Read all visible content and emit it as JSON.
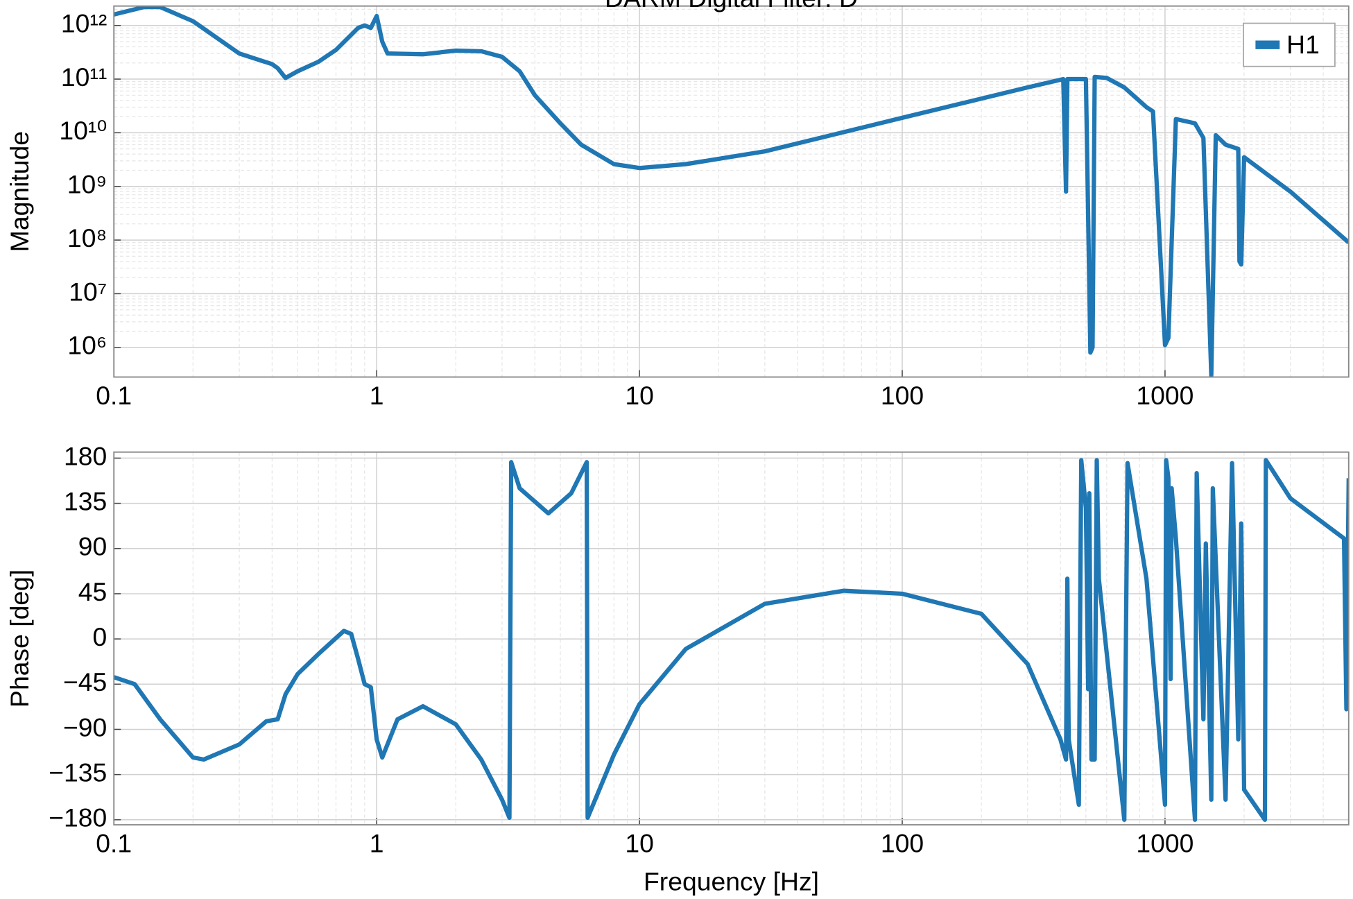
{
  "chart_data": [
    {
      "type": "line",
      "title": "DARM Digital Filter: D",
      "ylabel": "Magnitude",
      "xlog": true,
      "ylog": true,
      "grid": true,
      "legend": "upper right",
      "xlim": [
        0.1,
        5000
      ],
      "xticks": [
        0.1,
        1,
        10,
        100,
        1000
      ],
      "ylim": [
        280000,
        2300000000000
      ],
      "yticks": [
        {
          "value": 1000000,
          "label": "10⁶"
        },
        {
          "value": 10000000,
          "label": "10⁷"
        },
        {
          "value": 100000000,
          "label": "10⁸"
        },
        {
          "value": 1000000000,
          "label": "10⁹"
        },
        {
          "value": 10000000000,
          "label": "10¹⁰"
        },
        {
          "value": 100000000000,
          "label": "10¹¹"
        },
        {
          "value": 1000000000000,
          "label": "10¹²"
        }
      ],
      "x": [
        0.1,
        0.13,
        0.15,
        0.2,
        0.3,
        0.4,
        0.42,
        0.45,
        0.5,
        0.6,
        0.7,
        0.85,
        0.9,
        0.95,
        1.0,
        1.05,
        1.1,
        1.5,
        2,
        2.5,
        3,
        3.5,
        4,
        5,
        6,
        8,
        10,
        15,
        30,
        100,
        300,
        410,
        420,
        425,
        500,
        520,
        530,
        540,
        600,
        700,
        850,
        900,
        1000,
        1030,
        1100,
        1300,
        1400,
        1500,
        1560,
        1700,
        1900,
        1920,
        1950,
        2000,
        3000,
        5000
      ],
      "series": [
        {
          "name": "H1",
          "color": "#1f77b4",
          "values": [
            1600000000000,
            2200000000000,
            2200000000000,
            1200000000000,
            300000000000,
            190000000000,
            160000000000,
            105000000000,
            140000000000,
            210000000000,
            350000000000,
            900000000000,
            1000000000000,
            900000000000,
            1500000000000,
            500000000000,
            300000000000,
            290000000000,
            340000000000,
            330000000000,
            260000000000,
            140000000000,
            50000000000,
            15000000000,
            6000000000,
            2600000000,
            2200000000,
            2600000000,
            4500000000,
            19000000000,
            70000000000,
            100000000000,
            800000000,
            100000000000,
            100000000000,
            800000,
            1000000,
            110000000000,
            105000000000,
            70000000000,
            30000000000,
            25000000000,
            1100000,
            1500000,
            18000000000,
            15000000000,
            8000000000,
            300000,
            9000000000,
            6000000000,
            5000000000,
            40000000,
            35000000,
            3500000000,
            800000000,
            90000000
          ]
        }
      ]
    },
    {
      "type": "line",
      "xlabel": "Frequency [Hz]",
      "ylabel": "Phase [deg]",
      "xlog": true,
      "ylog": false,
      "grid": true,
      "xlim": [
        0.1,
        5000
      ],
      "xticks": [
        0.1,
        1,
        10,
        100,
        1000
      ],
      "ylim": [
        -185,
        186
      ],
      "yticks": [
        {
          "value": -180,
          "label": "−180"
        },
        {
          "value": -135,
          "label": "−135"
        },
        {
          "value": -90,
          "label": "−90"
        },
        {
          "value": -45,
          "label": "−45"
        },
        0,
        45,
        90,
        135,
        180
      ],
      "x": [
        0.1,
        0.12,
        0.15,
        0.2,
        0.22,
        0.3,
        0.38,
        0.42,
        0.45,
        0.5,
        0.6,
        0.75,
        0.8,
        0.85,
        0.9,
        0.95,
        1.0,
        1.05,
        1.2,
        1.5,
        2,
        2.5,
        3,
        3.2,
        3.25,
        3.5,
        4.5,
        5.5,
        6.3,
        6.35,
        8,
        10,
        15,
        30,
        60,
        100,
        200,
        300,
        400,
        420,
        425,
        430,
        470,
        480,
        500,
        510,
        515,
        520,
        525,
        540,
        550,
        560,
        700,
        720,
        850,
        1000,
        1010,
        1030,
        1050,
        1060,
        1100,
        1300,
        1320,
        1400,
        1430,
        1500,
        1520,
        1700,
        1800,
        1900,
        1950,
        2000,
        2400,
        2420,
        3000,
        4800,
        4900,
        5000
      ],
      "series": [
        {
          "name": "H1",
          "color": "#1f77b4",
          "values": [
            -38,
            -45,
            -80,
            -118,
            -120,
            -105,
            -82,
            -80,
            -55,
            -35,
            -15,
            8,
            5,
            -20,
            -45,
            -48,
            -100,
            -118,
            -80,
            -67,
            -85,
            -120,
            -160,
            -178,
            176,
            150,
            125,
            145,
            176,
            -178,
            -115,
            -65,
            -10,
            35,
            48,
            45,
            25,
            -25,
            -100,
            -120,
            60,
            -100,
            -165,
            178,
            130,
            -50,
            145,
            0,
            -120,
            -120,
            178,
            60,
            -180,
            175,
            60,
            -165,
            178,
            160,
            -40,
            150,
            100,
            -180,
            165,
            -80,
            95,
            -160,
            150,
            -160,
            175,
            -100,
            115,
            -150,
            -180,
            178,
            140,
            100,
            -70,
            160
          ]
        }
      ]
    }
  ]
}
